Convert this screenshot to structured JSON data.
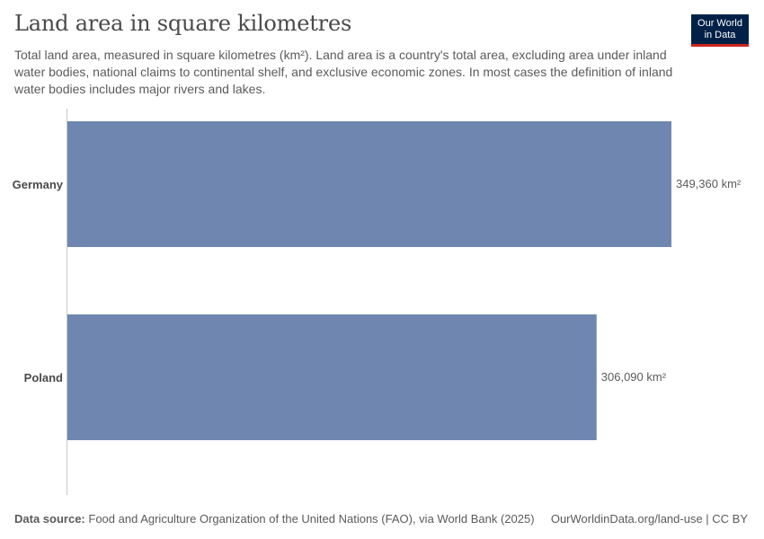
{
  "header": {
    "title": "Land area in square kilometres",
    "subtitle": "Total land area, measured in square kilometres (km²). Land area is a country's total area, excluding area under inland water bodies, national claims to continental shelf, and exclusive economic zones. In most cases the definition of inland water bodies includes major rivers and lakes."
  },
  "logo": {
    "line1": "Our World",
    "line2": "in Data",
    "bg_color": "#002147",
    "accent_color": "#ce261e"
  },
  "chart_data": {
    "type": "bar",
    "orientation": "horizontal",
    "categories": [
      "Germany",
      "Poland"
    ],
    "values": [
      349360,
      306090
    ],
    "value_labels": [
      "349,360 km²",
      "306,090 km²"
    ],
    "unit": "km²",
    "xlim": [
      0,
      349360
    ],
    "grid": false,
    "bar_color": "#6f87b0"
  },
  "footer": {
    "source_label": "Data source:",
    "source_text": "Food and Agriculture Organization of the United Nations (FAO), via World Bank (2025)",
    "credit": "OurWorldinData.org/land-use | CC BY"
  }
}
